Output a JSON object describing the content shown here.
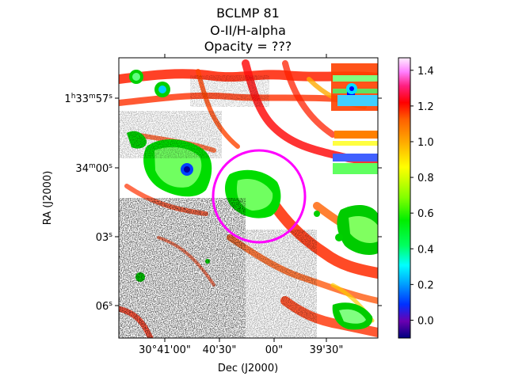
{
  "chart_data": {
    "type": "heatmap",
    "title_lines": [
      "BCLMP 81",
      "O-II/H-alpha",
      "Opacity = ???"
    ],
    "xlabel": "Dec (J2000)",
    "ylabel": "RA (J2000)",
    "x_ticks": [
      "30°41'00\"",
      "40'30\"",
      "00\"",
      "39'30\""
    ],
    "y_ticks": [
      {
        "h": "1",
        "m": "33",
        "s": "57",
        "label": "1h33m57s"
      },
      {
        "m": "34",
        "s": "00",
        "label": "34m00s"
      },
      {
        "s": "03",
        "label": "03s"
      },
      {
        "s": "06",
        "label": "06s"
      }
    ],
    "colorbar": {
      "colormap": "gist_ncar",
      "range": [
        -0.1,
        1.47
      ],
      "ticks": [
        "0.0",
        "0.2",
        "0.4",
        "0.6",
        "0.8",
        "1.0",
        "1.2",
        "1.4"
      ],
      "tick_values": [
        0.0,
        0.2,
        0.4,
        0.6,
        0.8,
        1.0,
        1.2,
        1.4
      ]
    },
    "marker": {
      "shape": "circle",
      "color": "#ff00ff"
    }
  }
}
